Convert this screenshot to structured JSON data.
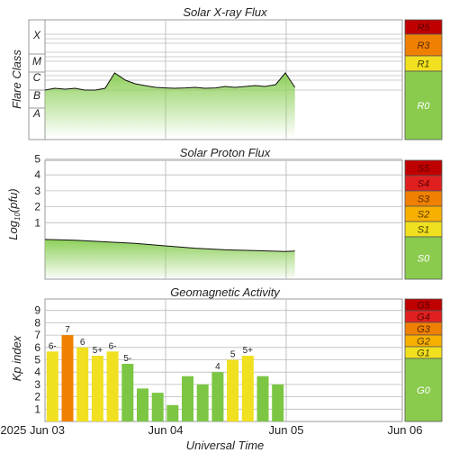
{
  "panels": {
    "xray": {
      "title": "Solar X-ray Flux",
      "ylabel": "Flare Class",
      "classes": [
        "A",
        "B",
        "C",
        "M",
        "X"
      ]
    },
    "proton": {
      "title": "Solar Proton Flux",
      "ylabel": "Log10(pfu)",
      "ylabel_main": "Log",
      "ylabel_sub": "10",
      "ylabel_tail": "(pfu)",
      "ticks": [
        "1",
        "2",
        "3",
        "4",
        "5"
      ]
    },
    "geo": {
      "title": "Geomagnetic Activity",
      "ylabel": "Kp index",
      "ticks": [
        "1",
        "2",
        "3",
        "4",
        "5",
        "6",
        "7",
        "8",
        "9"
      ]
    }
  },
  "scales": {
    "xray": [
      {
        "label": "R5",
        "color": "#c00000",
        "text_color": "#5a0000"
      },
      {
        "label": "R3",
        "color": "#f08000",
        "text_color": "#5a2a00"
      },
      {
        "label": "R1",
        "color": "#f0e020",
        "text_color": "#4a4200"
      },
      {
        "label": "R0",
        "color": "#8acb4e",
        "text_color": "#ffffff"
      }
    ],
    "proton": [
      {
        "label": "S5",
        "color": "#c00000",
        "text_color": "#5a0000"
      },
      {
        "label": "S4",
        "color": "#e02020",
        "text_color": "#5a0000"
      },
      {
        "label": "S3",
        "color": "#f08000",
        "text_color": "#5a2a00"
      },
      {
        "label": "S2",
        "color": "#f8b000",
        "text_color": "#5a3a00"
      },
      {
        "label": "S1",
        "color": "#f0e020",
        "text_color": "#4a4200"
      },
      {
        "label": "S0",
        "color": "#8acb4e",
        "text_color": "#ffffff"
      }
    ],
    "geo": [
      {
        "label": "G5",
        "color": "#c00000",
        "text_color": "#5a0000"
      },
      {
        "label": "G4",
        "color": "#e02020",
        "text_color": "#5a0000"
      },
      {
        "label": "G3",
        "color": "#f08000",
        "text_color": "#5a2a00"
      },
      {
        "label": "G2",
        "color": "#f8b000",
        "text_color": "#5a3a00"
      },
      {
        "label": "G1",
        "color": "#f0e020",
        "text_color": "#4a4200"
      },
      {
        "label": "G0",
        "color": "#8acb4e",
        "text_color": "#ffffff"
      }
    ]
  },
  "xaxis": {
    "title": "Universal Time",
    "ticks": [
      "2025 Jun 03",
      "Jun 04",
      "Jun 05",
      "Jun 06"
    ]
  },
  "colors": {
    "green": "#7cc644",
    "yellow": "#f0e020",
    "orange": "#f08000",
    "line": "#111111",
    "grid": "#bbbbbb"
  },
  "chart_data": [
    {
      "type": "line",
      "title": "Solar X-ray Flux",
      "ylabel": "Flare Class",
      "categories": [
        "A",
        "B",
        "C",
        "M",
        "X"
      ],
      "x_days": [
        0,
        0.08,
        0.17,
        0.25,
        0.33,
        0.42,
        0.5,
        0.58,
        0.67,
        0.75,
        0.83,
        0.92,
        1.0,
        1.08,
        1.17,
        1.25,
        1.33,
        1.42,
        1.5,
        1.58,
        1.67,
        1.75,
        1.83,
        1.92,
        2.0,
        2.08
      ],
      "y_class_level": [
        2.0,
        2.1,
        2.05,
        2.1,
        2.0,
        2.0,
        2.1,
        2.95,
        2.55,
        2.35,
        2.25,
        2.15,
        2.12,
        2.1,
        2.12,
        2.15,
        2.1,
        2.12,
        2.2,
        2.15,
        2.2,
        2.25,
        2.2,
        2.3,
        2.95,
        2.15
      ]
    },
    {
      "type": "line",
      "title": "Solar Proton Flux",
      "ylabel": "Log10(pfu)",
      "ylim": [
        -1.2,
        5.8
      ],
      "x_days": [
        0,
        0.25,
        0.5,
        0.75,
        1.0,
        1.25,
        1.5,
        1.75,
        2.0,
        2.08
      ],
      "y_log_pfu": [
        -0.05,
        -0.1,
        -0.2,
        -0.3,
        -0.45,
        -0.6,
        -0.7,
        -0.75,
        -0.8,
        -0.78
      ]
    },
    {
      "type": "bar",
      "title": "Geomagnetic Activity",
      "ylabel": "Kp index",
      "ylim": [
        0,
        9.6
      ],
      "x_days": [
        0.0625,
        0.1875,
        0.3125,
        0.4375,
        0.5625,
        0.6875,
        0.8125,
        0.9375,
        1.0625,
        1.1875,
        1.3125,
        1.4375,
        1.5625,
        1.6875,
        1.8125,
        1.9375
      ],
      "values": [
        5.67,
        7.0,
        6.0,
        5.33,
        5.67,
        4.67,
        2.67,
        2.33,
        1.33,
        3.67,
        3.0,
        4.0,
        5.0,
        5.33,
        3.67,
        3.0
      ],
      "labels": [
        "6-",
        "7",
        "6",
        "5+",
        "6-",
        "5-",
        "",
        "",
        "",
        "",
        "",
        "4",
        "5",
        "5+",
        "",
        ""
      ]
    }
  ]
}
